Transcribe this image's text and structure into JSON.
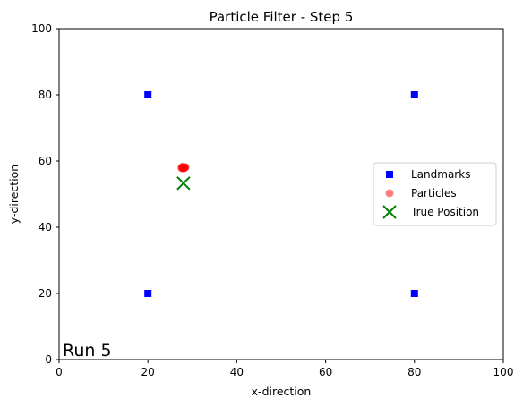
{
  "chart_data": {
    "type": "scatter",
    "title": "Particle Filter - Step 5",
    "xlabel": "x-direction",
    "ylabel": "y-direction",
    "xlim": [
      0,
      100
    ],
    "ylim": [
      0,
      100
    ],
    "xticks": [
      0,
      20,
      40,
      60,
      80,
      100
    ],
    "yticks": [
      0,
      20,
      40,
      60,
      80,
      100
    ],
    "grid": false,
    "legend_position": "center-right",
    "annotation": "Run 5",
    "series": [
      {
        "name": "Landmarks",
        "marker": "square",
        "color": "#0000ff",
        "points": [
          {
            "x": 20,
            "y": 80
          },
          {
            "x": 80,
            "y": 80
          },
          {
            "x": 20,
            "y": 20
          },
          {
            "x": 80,
            "y": 20
          }
        ]
      },
      {
        "name": "Particles",
        "marker": "circle",
        "color": "#ff0000",
        "points": [
          {
            "x": 27.8,
            "y": 58.2
          },
          {
            "x": 28.2,
            "y": 58.0
          },
          {
            "x": 28.0,
            "y": 57.8
          },
          {
            "x": 27.6,
            "y": 57.9
          },
          {
            "x": 28.4,
            "y": 58.1
          }
        ]
      },
      {
        "name": "True Position",
        "marker": "x",
        "color": "#008000",
        "points": [
          {
            "x": 28,
            "y": 53.3
          }
        ]
      }
    ]
  }
}
